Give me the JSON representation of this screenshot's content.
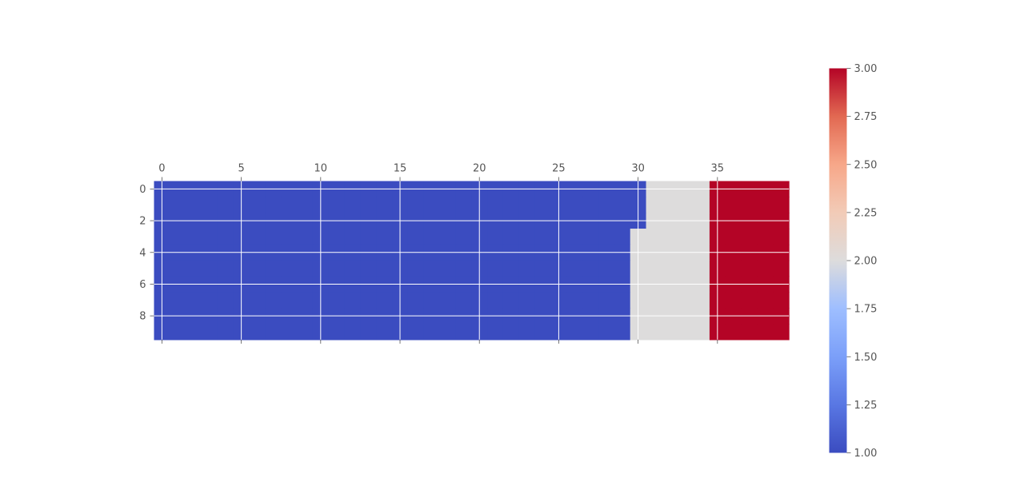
{
  "chart_data": {
    "type": "heatmap",
    "title": "",
    "xlabel": "",
    "ylabel": "",
    "n_cols": 40,
    "n_rows": 10,
    "x_ticks": [
      0,
      5,
      10,
      15,
      20,
      25,
      30,
      35
    ],
    "y_ticks": [
      0,
      2,
      4,
      6,
      8
    ],
    "x_tick_labels": [
      "0",
      "5",
      "10",
      "15",
      "20",
      "25",
      "30",
      "35"
    ],
    "y_tick_labels": [
      "0",
      "2",
      "4",
      "6",
      "8"
    ],
    "x_axis_position": "top",
    "grid": true,
    "rows": [
      [
        1,
        1,
        1,
        1,
        1,
        1,
        1,
        1,
        1,
        1,
        1,
        1,
        1,
        1,
        1,
        1,
        1,
        1,
        1,
        1,
        1,
        1,
        1,
        1,
        1,
        1,
        1,
        1,
        1,
        1,
        1,
        2,
        2,
        2,
        2,
        3,
        3,
        3,
        3,
        3
      ],
      [
        1,
        1,
        1,
        1,
        1,
        1,
        1,
        1,
        1,
        1,
        1,
        1,
        1,
        1,
        1,
        1,
        1,
        1,
        1,
        1,
        1,
        1,
        1,
        1,
        1,
        1,
        1,
        1,
        1,
        1,
        1,
        2,
        2,
        2,
        2,
        3,
        3,
        3,
        3,
        3
      ],
      [
        1,
        1,
        1,
        1,
        1,
        1,
        1,
        1,
        1,
        1,
        1,
        1,
        1,
        1,
        1,
        1,
        1,
        1,
        1,
        1,
        1,
        1,
        1,
        1,
        1,
        1,
        1,
        1,
        1,
        1,
        1,
        2,
        2,
        2,
        2,
        3,
        3,
        3,
        3,
        3
      ],
      [
        1,
        1,
        1,
        1,
        1,
        1,
        1,
        1,
        1,
        1,
        1,
        1,
        1,
        1,
        1,
        1,
        1,
        1,
        1,
        1,
        1,
        1,
        1,
        1,
        1,
        1,
        1,
        1,
        1,
        1,
        2,
        2,
        2,
        2,
        2,
        3,
        3,
        3,
        3,
        3
      ],
      [
        1,
        1,
        1,
        1,
        1,
        1,
        1,
        1,
        1,
        1,
        1,
        1,
        1,
        1,
        1,
        1,
        1,
        1,
        1,
        1,
        1,
        1,
        1,
        1,
        1,
        1,
        1,
        1,
        1,
        1,
        2,
        2,
        2,
        2,
        2,
        3,
        3,
        3,
        3,
        3
      ],
      [
        1,
        1,
        1,
        1,
        1,
        1,
        1,
        1,
        1,
        1,
        1,
        1,
        1,
        1,
        1,
        1,
        1,
        1,
        1,
        1,
        1,
        1,
        1,
        1,
        1,
        1,
        1,
        1,
        1,
        1,
        2,
        2,
        2,
        2,
        2,
        3,
        3,
        3,
        3,
        3
      ],
      [
        1,
        1,
        1,
        1,
        1,
        1,
        1,
        1,
        1,
        1,
        1,
        1,
        1,
        1,
        1,
        1,
        1,
        1,
        1,
        1,
        1,
        1,
        1,
        1,
        1,
        1,
        1,
        1,
        1,
        1,
        2,
        2,
        2,
        2,
        2,
        3,
        3,
        3,
        3,
        3
      ],
      [
        1,
        1,
        1,
        1,
        1,
        1,
        1,
        1,
        1,
        1,
        1,
        1,
        1,
        1,
        1,
        1,
        1,
        1,
        1,
        1,
        1,
        1,
        1,
        1,
        1,
        1,
        1,
        1,
        1,
        1,
        2,
        2,
        2,
        2,
        2,
        3,
        3,
        3,
        3,
        3
      ],
      [
        1,
        1,
        1,
        1,
        1,
        1,
        1,
        1,
        1,
        1,
        1,
        1,
        1,
        1,
        1,
        1,
        1,
        1,
        1,
        1,
        1,
        1,
        1,
        1,
        1,
        1,
        1,
        1,
        1,
        1,
        2,
        2,
        2,
        2,
        2,
        3,
        3,
        3,
        3,
        3
      ],
      [
        1,
        1,
        1,
        1,
        1,
        1,
        1,
        1,
        1,
        1,
        1,
        1,
        1,
        1,
        1,
        1,
        1,
        1,
        1,
        1,
        1,
        1,
        1,
        1,
        1,
        1,
        1,
        1,
        1,
        1,
        2,
        2,
        2,
        2,
        2,
        3,
        3,
        3,
        3,
        3
      ]
    ],
    "colormap": "coolwarm",
    "colors": {
      "1": "#3b4cc0",
      "2": "#dddcdc",
      "3": "#b40426",
      "grid": "#ffffff",
      "tick": "#555555"
    },
    "colorbar": {
      "vmin": 1.0,
      "vmax": 3.0,
      "ticks": [
        1.0,
        1.25,
        1.5,
        1.75,
        2.0,
        2.25,
        2.5,
        2.75,
        3.0
      ],
      "tick_labels": [
        "1.00",
        "1.25",
        "1.50",
        "1.75",
        "2.00",
        "2.25",
        "2.50",
        "2.75",
        "3.00"
      ],
      "position": "right"
    }
  }
}
